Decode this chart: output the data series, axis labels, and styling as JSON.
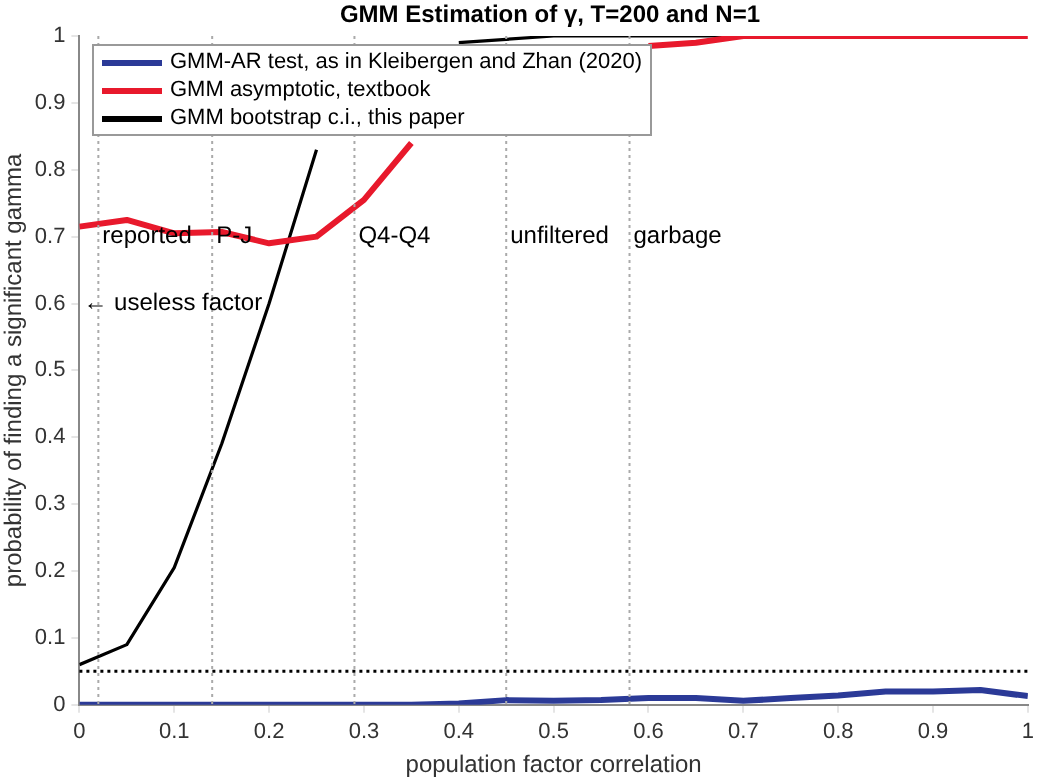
{
  "chart_data": {
    "type": "line",
    "title": "GMM Estimation of γ, T=200 and N=1",
    "xlabel": "population factor correlation",
    "ylabel": "probability of finding a significant gamma",
    "x": [
      0,
      0.05,
      0.1,
      0.15,
      0.2,
      0.25,
      0.3,
      0.35,
      0.4,
      0.45,
      0.5,
      0.55,
      0.6,
      0.65,
      0.7,
      0.75,
      0.8,
      0.85,
      0.9,
      0.95,
      1
    ],
    "series": [
      {
        "name": "GMM-AR test, as in Kleibergen and Zhan (2020)",
        "color": "#2b3a97",
        "values": [
          0,
          0,
          0,
          0,
          0,
          0,
          0,
          0,
          0.002,
          0.007,
          0.006,
          0.007,
          0.01,
          0.01,
          0.006,
          0.01,
          0.014,
          0.02,
          0.02,
          0.022,
          0.013
        ]
      },
      {
        "name": "GMM asymptotic, textbook",
        "color": "#e8192c",
        "values": [
          0.715,
          0.725,
          0.705,
          0.707,
          0.69,
          0.7,
          0.755,
          0.84,
          null,
          null,
          null,
          null,
          0.985,
          0.99,
          1,
          1,
          1,
          1,
          1,
          1,
          1
        ]
      },
      {
        "name": "GMM bootstrap c.i., this paper",
        "color": "#000000",
        "values": [
          0.06,
          0.09,
          0.205,
          0.39,
          0.6,
          0.83,
          null,
          null,
          0.99,
          0.995,
          1,
          1,
          1,
          1,
          1,
          null,
          null,
          null,
          null,
          null,
          null
        ]
      }
    ],
    "xlim": [
      0,
      1
    ],
    "ylim": [
      0,
      1
    ],
    "xticks": [
      0,
      0.1,
      0.2,
      0.3,
      0.4,
      0.5,
      0.6,
      0.7,
      0.8,
      0.9,
      1
    ],
    "yticks": [
      0,
      0.1,
      0.2,
      0.3,
      0.4,
      0.5,
      0.6,
      0.7,
      0.8,
      0.9,
      1
    ],
    "ref_lines": [
      {
        "axis": "y",
        "value": 0.05,
        "color": "#000000",
        "line_style": "dotted"
      },
      {
        "axis": "x",
        "value": 0.02,
        "label": "reported",
        "color": "#aaaaaa",
        "line_style": "dotted"
      },
      {
        "axis": "x",
        "value": 0.14,
        "label": "P-J",
        "color": "#aaaaaa",
        "line_style": "dotted"
      },
      {
        "axis": "x",
        "value": 0.29,
        "label": "Q4-Q4",
        "color": "#aaaaaa",
        "line_style": "dotted"
      },
      {
        "axis": "x",
        "value": 0.45,
        "label": "unfiltered",
        "color": "#aaaaaa",
        "line_style": "dotted"
      },
      {
        "axis": "x",
        "value": 0.58,
        "label": "garbage",
        "color": "#aaaaaa",
        "line_style": "dotted"
      }
    ],
    "annotations": [
      "← useless factor"
    ],
    "legend": "top left",
    "grid": false,
    "marker": "none",
    "line_style": "solid"
  }
}
